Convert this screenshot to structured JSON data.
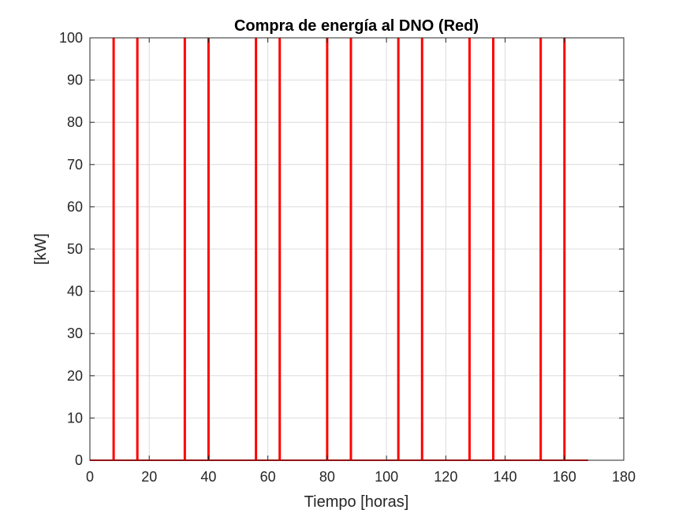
{
  "chart_data": {
    "type": "line",
    "title": "Compra de energía al DNO (Red)",
    "xlabel": "Tiempo [horas]",
    "ylabel": "[kW]",
    "xlim": [
      0,
      180
    ],
    "ylim": [
      0,
      100
    ],
    "xticks": [
      0,
      20,
      40,
      60,
      80,
      100,
      120,
      140,
      160,
      180
    ],
    "yticks": [
      0,
      10,
      20,
      30,
      40,
      50,
      60,
      70,
      80,
      90,
      100
    ],
    "xtick_labels": [
      "0",
      "20",
      "40",
      "60",
      "80",
      "100",
      "120",
      "140",
      "160",
      "180"
    ],
    "ytick_labels": [
      "0",
      "10",
      "20",
      "30",
      "40",
      "50",
      "60",
      "70",
      "80",
      "90",
      "100"
    ],
    "grid": true,
    "legend": "none",
    "series": [
      {
        "color": "#ff0000",
        "spikes_x": [
          8,
          16,
          32,
          40,
          56,
          64,
          80,
          88,
          104,
          112,
          128,
          136,
          152,
          160
        ],
        "spike_value": 100,
        "baseline_value": 0,
        "x_start": 0,
        "x_end": 168
      }
    ]
  }
}
